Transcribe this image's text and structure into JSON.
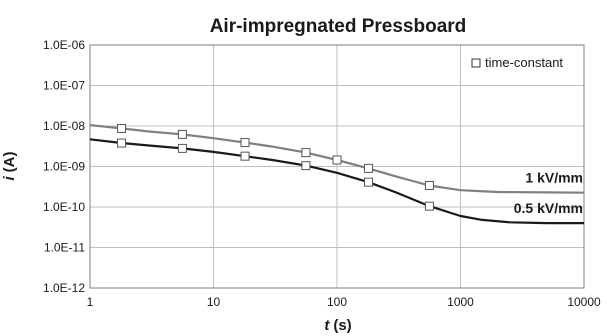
{
  "chart_data": {
    "type": "line",
    "title": "Air-impregnated Pressboard",
    "xlabel_var": "t",
    "xlabel_unit": "(s)",
    "ylabel_var": "i",
    "ylabel_unit": "(A)",
    "x_scale": "log",
    "y_scale": "log",
    "xlim": [
      1,
      10000
    ],
    "ylim": [
      1e-12,
      1e-06
    ],
    "x_ticks": [
      "1",
      "10",
      "100",
      "1000",
      "10000"
    ],
    "y_ticks": [
      "1.0E-12",
      "1.0E-11",
      "1.0E-10",
      "1.0E-09",
      "1.0E-08",
      "1.0E-07",
      "1.0E-06"
    ],
    "grid": true,
    "legend": {
      "position": "top-right",
      "label": "time-constant",
      "marker": "open-square"
    },
    "series": [
      {
        "name": "1 kV/mm",
        "color": "#808080",
        "x": [
          1,
          1.8,
          3,
          5.6,
          10,
          18,
          30,
          56,
          100,
          180,
          300,
          560,
          1000,
          2000,
          5000,
          10000
        ],
        "y": [
          1.05e-08,
          8.7e-09,
          7.3e-09,
          6.2e-09,
          5e-09,
          3.9e-09,
          3.1e-09,
          2.2e-09,
          1.45e-09,
          9e-10,
          5.7e-10,
          3.4e-10,
          2.6e-10,
          2.35e-10,
          2.3e-10,
          2.25e-10
        ],
        "markers_x": [
          1.8,
          5.6,
          18,
          56,
          100,
          180,
          560
        ],
        "markers_y": [
          8.7e-09,
          6.2e-09,
          3.9e-09,
          2.2e-09,
          1.45e-09,
          9e-10,
          3.4e-10
        ]
      },
      {
        "name": "0.5 kV/mm",
        "color": "#1a1a1a",
        "x": [
          1,
          1.8,
          3,
          5.6,
          10,
          18,
          30,
          56,
          100,
          180,
          300,
          560,
          1000,
          1500,
          2500,
          5000,
          10000
        ],
        "y": [
          4.7e-09,
          3.8e-09,
          3.3e-09,
          2.8e-09,
          2.3e-09,
          1.8e-09,
          1.45e-09,
          1.05e-09,
          7e-10,
          4.1e-10,
          2.3e-10,
          1.05e-10,
          6e-11,
          4.8e-11,
          4.2e-11,
          4e-11,
          4e-11
        ],
        "markers_x": [
          1.8,
          5.6,
          18,
          56,
          180,
          560
        ],
        "markers_y": [
          3.8e-09,
          2.8e-09,
          1.8e-09,
          1.05e-09,
          4.1e-10,
          1.05e-10
        ]
      }
    ]
  }
}
